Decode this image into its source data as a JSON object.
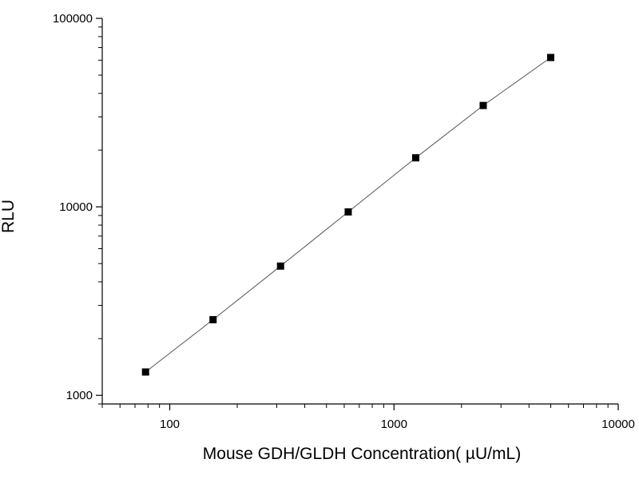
{
  "chart_data": {
    "type": "scatter",
    "title": "",
    "xlabel": "Mouse GDH/GLDH Concentration( µU/mL)",
    "ylabel": "RLU",
    "x_scale": "log",
    "y_scale": "log",
    "xlim": [
      50,
      10000
    ],
    "ylim": [
      900,
      100000
    ],
    "x_ticks": [
      100,
      1000,
      10000
    ],
    "x_tick_labels": [
      "100",
      "1000",
      "10000"
    ],
    "y_ticks": [
      1000,
      10000,
      100000
    ],
    "y_tick_labels": [
      "1000",
      "10000",
      "100000"
    ],
    "grid": false,
    "legend": "none",
    "series": [
      {
        "x": [
          78,
          156,
          312,
          625,
          1250,
          2500,
          5000
        ],
        "y": [
          1330,
          2520,
          4850,
          9400,
          18200,
          34500,
          62000
        ],
        "marker": "square",
        "line": "connected",
        "color": "#000000"
      }
    ]
  }
}
